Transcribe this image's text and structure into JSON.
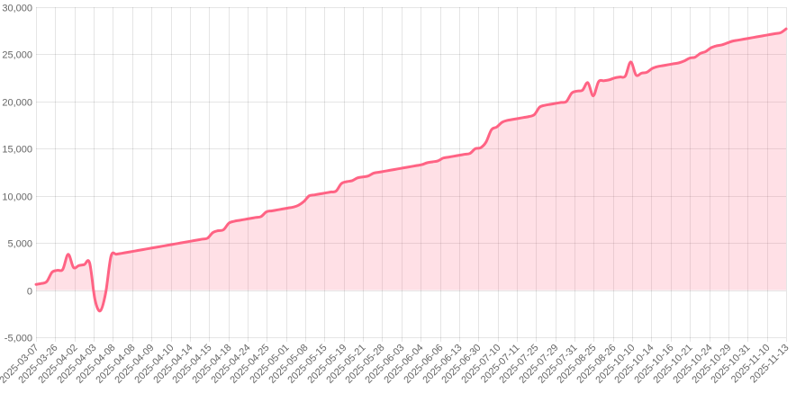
{
  "chart_data": {
    "type": "area",
    "title": "",
    "xlabel": "",
    "ylabel": "",
    "ylim": [
      -5000,
      30000
    ],
    "y_ticks": [
      -5000,
      0,
      5000,
      10000,
      15000,
      20000,
      25000,
      30000
    ],
    "y_tick_labels": [
      "-5,000",
      "0",
      "5,000",
      "10,000",
      "15,000",
      "20,000",
      "25,000",
      "30,000"
    ],
    "grid": true,
    "legend": "none",
    "colors": {
      "line": "#ff6384",
      "fill": "rgba(255, 99, 132, 0.2)",
      "grid": "rgba(0,0,0,0.1)",
      "tick_text": "#666666"
    },
    "x_tick_labels": [
      "2025-03-07",
      "2025-03-26",
      "2025-04-02",
      "2025-04-03",
      "2025-04-08",
      "2025-04-08",
      "2025-04-09",
      "2025-04-10",
      "2025-04-14",
      "2025-04-15",
      "2025-04-18",
      "2025-04-24",
      "2025-04-25",
      "2025-05-01",
      "2025-05-08",
      "2025-05-15",
      "2025-05-19",
      "2025-05-21",
      "2025-05-28",
      "2025-06-03",
      "2025-06-04",
      "2025-06-06",
      "2025-06-13",
      "2025-06-30",
      "2025-07-10",
      "2025-07-11",
      "2025-07-25",
      "2025-07-29",
      "2025-07-31",
      "2025-08-25",
      "2025-08-26",
      "2025-10-10",
      "2025-10-14",
      "2025-10-16",
      "2025-10-21",
      "2025-10-24",
      "2025-10-29",
      "2025-10-31",
      "2025-11-10",
      "2025-11-13"
    ],
    "series": [
      {
        "values": [
          600,
          700,
          900,
          1900,
          2100,
          2200,
          3800,
          2400,
          2600,
          2700,
          2900,
          -1000,
          -2200,
          -300,
          3600,
          3800,
          3900,
          4000,
          4100,
          4200,
          4300,
          4400,
          4500,
          4600,
          4700,
          4800,
          4900,
          5000,
          5100,
          5200,
          5300,
          5400,
          5500,
          6100,
          6300,
          6400,
          7100,
          7300,
          7400,
          7500,
          7600,
          7700,
          7800,
          8300,
          8400,
          8500,
          8600,
          8700,
          8800,
          9000,
          9400,
          10000,
          10100,
          10200,
          10300,
          10400,
          10500,
          11300,
          11500,
          11600,
          11900,
          12000,
          12100,
          12400,
          12500,
          12600,
          12700,
          12800,
          12900,
          13000,
          13100,
          13200,
          13300,
          13500,
          13600,
          13700,
          14000,
          14100,
          14200,
          14300,
          14400,
          14500,
          15000,
          15100,
          15700,
          17000,
          17300,
          17800,
          18000,
          18100,
          18200,
          18300,
          18400,
          18600,
          19400,
          19600,
          19700,
          19800,
          19900,
          20000,
          20900,
          21100,
          21200,
          22000,
          20600,
          22100,
          22200,
          22300,
          22500,
          22600,
          22700,
          24200,
          22800,
          23000,
          23100,
          23500,
          23700,
          23800,
          23900,
          24000,
          24100,
          24300,
          24600,
          24700,
          25100,
          25300,
          25700,
          25900,
          26000,
          26200,
          26400,
          26500,
          26600,
          26700,
          26800,
          26900,
          27000,
          27100,
          27200,
          27300,
          27700
        ]
      }
    ]
  }
}
